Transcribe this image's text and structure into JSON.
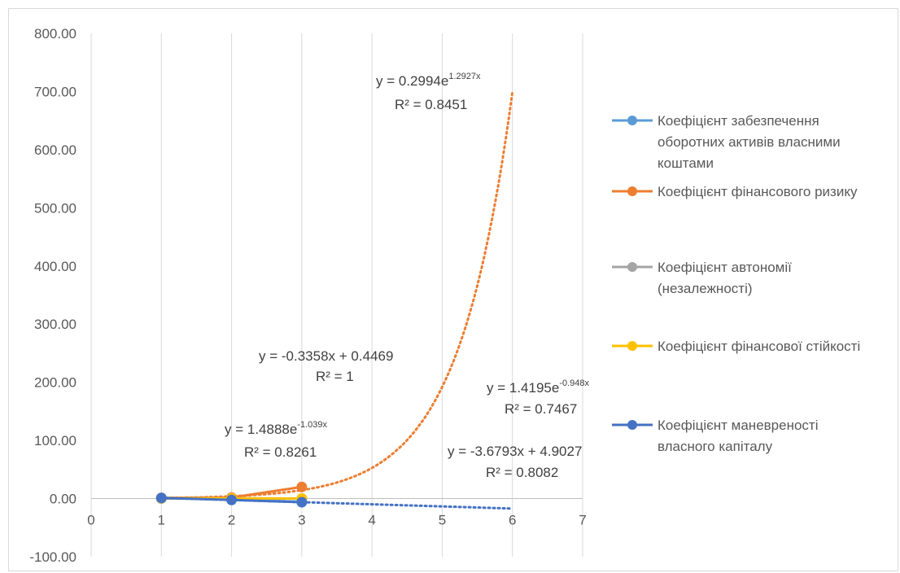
{
  "chart_data": {
    "type": "scatter",
    "title": "",
    "xlabel": "",
    "ylabel": "",
    "xlim": [
      0,
      7
    ],
    "ylim": [
      -100,
      800
    ],
    "x_ticks": [
      "0",
      "1",
      "2",
      "3",
      "4",
      "5",
      "6",
      "7"
    ],
    "y_ticks": [
      "-100.00",
      "0.00",
      "100.00",
      "200.00",
      "300.00",
      "400.00",
      "500.00",
      "600.00",
      "700.00",
      "800.00"
    ],
    "grid": "vertical",
    "legend_position": "right",
    "series": [
      {
        "name": "Коефіцієнт забезпечення оборотних активів власними коштами",
        "legend_lines": [
          "Коефіцієнт забезпечення",
          "оборотних активів власними",
          "коштами"
        ],
        "color": "#5B9BD5",
        "x": [
          1,
          2,
          3
        ],
        "y": [
          0.11,
          -0.23,
          -0.56
        ]
      },
      {
        "name": "Коефіцієнт фінансового ризику",
        "legend_lines": [
          "Коефіцієнт фінансового ризику"
        ],
        "color": "#ED7D31",
        "x": [
          1,
          2,
          3
        ],
        "y": [
          1.2,
          1.8,
          20
        ]
      },
      {
        "name": "Коефіцієнт автономії (незалежності)",
        "legend_lines": [
          "Коефіцієнт автономії",
          "(незалежності)"
        ],
        "color": "#A5A5A5",
        "x": [
          1,
          2,
          3
        ],
        "y": [
          0.45,
          0.36,
          0.05
        ]
      },
      {
        "name": "Коефіцієнт фінансової стійкості",
        "legend_lines": [
          "Коефіцієнт фінансової стійкості"
        ],
        "color": "#FFC000",
        "x": [
          1,
          2,
          3
        ],
        "y": [
          0.6,
          0.4,
          0.1
        ]
      },
      {
        "name": "Коефіцієнт маневреності власного капіталу",
        "legend_lines": [
          "Коефіцієнт маневреності",
          "власного капіталу"
        ],
        "color": "#4472C4",
        "x": [
          1,
          2,
          3
        ],
        "y": [
          1.2,
          -2.4,
          -6.2
        ]
      }
    ],
    "trendlines": [
      {
        "type": "exponential",
        "a": 0.2994,
        "b": 1.2927,
        "x_range": [
          1,
          6
        ],
        "color": "#ED7D31"
      },
      {
        "type": "linear",
        "a": -3.6793,
        "b": 4.9027,
        "x_range": [
          1,
          6
        ],
        "color": "#4472C4"
      }
    ],
    "annotations": [
      {
        "eq_base": "y = 0.2994e",
        "eq_exp": "1.2927x",
        "r2": "R² = 0.8451"
      },
      {
        "eq_base": "y = -0.3358x + 0.4469",
        "eq_exp": "",
        "r2": "R² = 1"
      },
      {
        "eq_base": "y = 1.4195e",
        "eq_exp": "-0.948x",
        "r2": "R² = 0.7467"
      },
      {
        "eq_base": "y = 1.4888e",
        "eq_exp": "-1.039x",
        "r2": "R² = 0.8261"
      },
      {
        "eq_base": "y = -3.6793x + 4.9027",
        "eq_exp": "",
        "r2": "R² = 0.8082"
      }
    ]
  }
}
